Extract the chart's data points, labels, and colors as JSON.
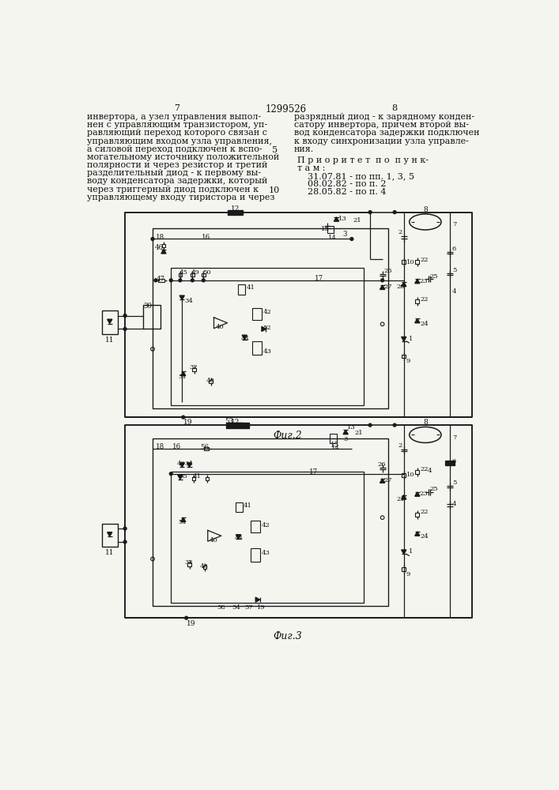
{
  "page_num_left": "7",
  "page_num_right": "8",
  "patent_num": "1299526",
  "text_left": [
    "инвертора, а узел управления выпол-",
    "нен с управляющим транзистором, уп-",
    "равляющий переход которого связан с",
    "управляющим входом узла управления,",
    "а силовой переход подключен к вспо-",
    "могательному источнику положительной",
    "полярности и через резистор и третий",
    "разделительный диод - к первому вы-",
    "воду конденсатора задержки, который",
    "через триггерный диод подключен к",
    "управляющему входу тиристора и через"
  ],
  "text_right": [
    "разрядный диод - к зарядному конден-",
    "сатору инвертора, причем второй вы-",
    "вод конденсатора задержки подключен",
    "к входу синхронизации узла управле-",
    "ния."
  ],
  "priority_header": "П р и о р и т е т  п о  п у н к-",
  "priority_line2": "т а м :",
  "priority_items": [
    "31.07.81 - по пп. 1, 3, 5",
    "08.02.82 - по п. 2",
    "28.05.82 - по п. 4"
  ],
  "fig2_label": "Фиг.2",
  "fig3_label": "Фиг.3",
  "bg_color": "#f5f5f0",
  "line_color": "#1a1a1a",
  "text_color": "#111111"
}
